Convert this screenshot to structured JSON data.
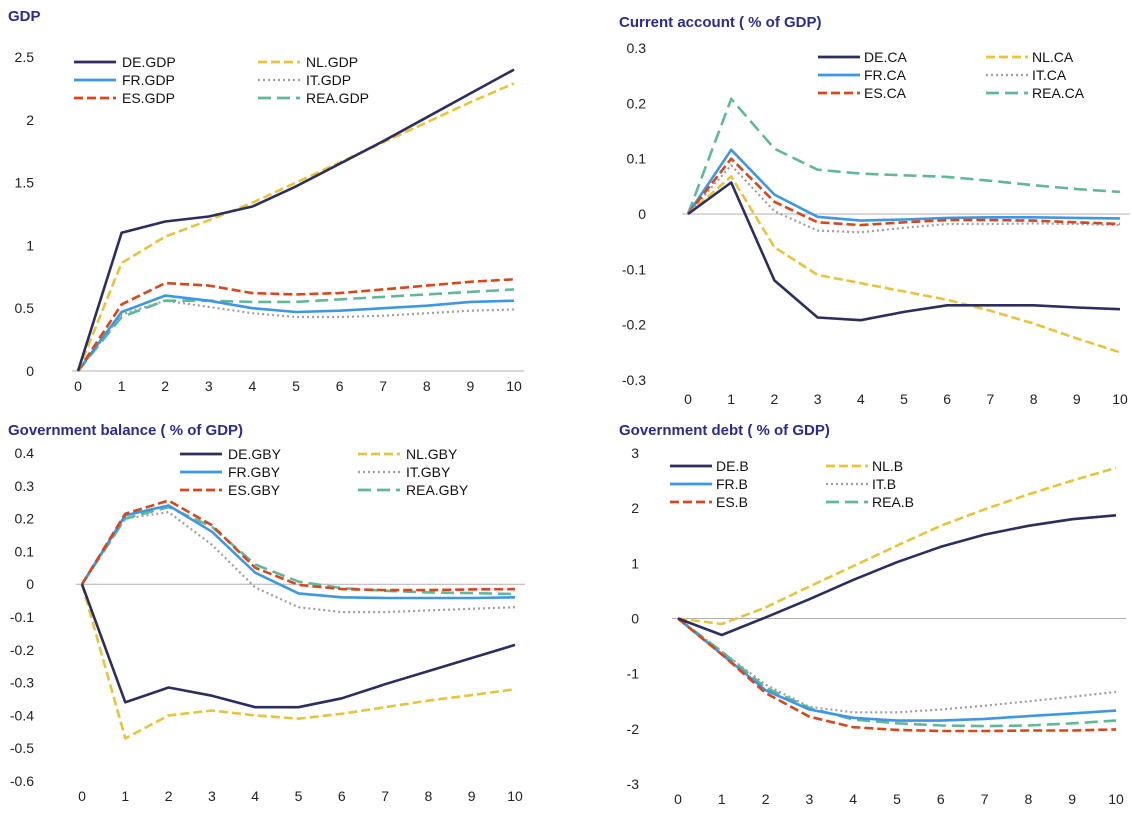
{
  "colors": {
    "DE": "#2b2e5e",
    "FR": "#3d97e6",
    "ES": "#d9461a",
    "NL": "#e8c43a",
    "IT": "#9e9e9e",
    "REA": "#5fb89a"
  },
  "chart_data": [
    {
      "type": "line",
      "title": "GDP",
      "x": [
        0,
        1,
        2,
        3,
        4,
        5,
        6,
        7,
        8,
        9,
        10
      ],
      "ylim": [
        0,
        2.5
      ],
      "yticks": [
        0,
        0.5,
        1,
        1.5,
        2,
        2.5
      ],
      "ytick_labels": [
        "0",
        "0.5",
        "1",
        "1.5",
        "2",
        "2.5"
      ],
      "legend_layout": "top-left",
      "series": [
        {
          "name": "DE.GDP",
          "key": "DE",
          "style": "solid",
          "values": [
            0,
            1.1,
            1.19,
            1.23,
            1.31,
            1.47,
            1.65,
            1.83,
            2.02,
            2.21,
            2.4
          ]
        },
        {
          "name": "NL.GDP",
          "key": "NL",
          "style": "dash",
          "values": [
            0,
            0.86,
            1.07,
            1.2,
            1.34,
            1.5,
            1.66,
            1.82,
            1.98,
            2.14,
            2.29
          ]
        },
        {
          "name": "FR.GDP",
          "key": "FR",
          "style": "solid",
          "values": [
            0,
            0.47,
            0.6,
            0.56,
            0.5,
            0.47,
            0.48,
            0.5,
            0.52,
            0.55,
            0.56
          ]
        },
        {
          "name": "IT.GDP",
          "key": "IT",
          "style": "dot",
          "values": [
            0,
            0.45,
            0.56,
            0.51,
            0.46,
            0.43,
            0.43,
            0.44,
            0.46,
            0.48,
            0.49
          ]
        },
        {
          "name": "ES.GDP",
          "key": "ES",
          "style": "dash",
          "values": [
            0,
            0.53,
            0.7,
            0.68,
            0.62,
            0.61,
            0.62,
            0.65,
            0.68,
            0.71,
            0.73
          ]
        },
        {
          "name": "REA.GDP",
          "key": "REA",
          "style": "longdash",
          "values": [
            0,
            0.43,
            0.56,
            0.56,
            0.55,
            0.55,
            0.57,
            0.59,
            0.61,
            0.63,
            0.65
          ]
        }
      ]
    },
    {
      "type": "line",
      "title": "Current account ( % of GDP)",
      "x": [
        0,
        1,
        2,
        3,
        4,
        5,
        6,
        7,
        8,
        9,
        10
      ],
      "ylim": [
        -0.3,
        0.3
      ],
      "yticks": [
        -0.3,
        -0.2,
        -0.1,
        0,
        0.1,
        0.2,
        0.3
      ],
      "ytick_labels": [
        "-0.3",
        "-0.2",
        "-0.1",
        "0",
        "0.1",
        "0.2",
        "0.3"
      ],
      "legend_layout": "top-right",
      "series": [
        {
          "name": "DE.CA",
          "key": "DE",
          "style": "solid",
          "values": [
            0,
            0.057,
            -0.12,
            -0.187,
            -0.192,
            -0.177,
            -0.165,
            -0.165,
            -0.165,
            -0.169,
            -0.172
          ]
        },
        {
          "name": "NL.CA",
          "key": "NL",
          "style": "dash",
          "values": [
            0,
            0.068,
            -0.06,
            -0.11,
            -0.125,
            -0.14,
            -0.155,
            -0.175,
            -0.198,
            -0.225,
            -0.25
          ]
        },
        {
          "name": "FR.CA",
          "key": "FR",
          "style": "solid",
          "values": [
            0,
            0.116,
            0.035,
            -0.005,
            -0.012,
            -0.01,
            -0.007,
            -0.006,
            -0.006,
            -0.007,
            -0.008
          ]
        },
        {
          "name": "IT.CA",
          "key": "IT",
          "style": "dot",
          "values": [
            0,
            0.088,
            0.005,
            -0.03,
            -0.033,
            -0.025,
            -0.018,
            -0.018,
            -0.017,
            -0.018,
            -0.02
          ]
        },
        {
          "name": "ES.CA",
          "key": "ES",
          "style": "dash",
          "values": [
            0,
            0.1,
            0.022,
            -0.015,
            -0.02,
            -0.015,
            -0.011,
            -0.011,
            -0.012,
            -0.015,
            -0.018
          ]
        },
        {
          "name": "REA.CA",
          "key": "REA",
          "style": "longdash",
          "values": [
            0,
            0.208,
            0.118,
            0.08,
            0.073,
            0.07,
            0.067,
            0.06,
            0.052,
            0.045,
            0.04
          ]
        }
      ]
    },
    {
      "type": "line",
      "title": "Government balance ( % of GDP)",
      "x": [
        0,
        1,
        2,
        3,
        4,
        5,
        6,
        7,
        8,
        9,
        10
      ],
      "ylim": [
        -0.6,
        0.4
      ],
      "yticks": [
        -0.6,
        -0.5,
        -0.4,
        -0.3,
        -0.2,
        -0.1,
        0,
        0.1,
        0.2,
        0.3,
        0.4
      ],
      "ytick_labels": [
        "-0.6",
        "-0.5",
        "-0.4",
        "-0.3",
        "-0.2",
        "-0.1",
        "0",
        "0.1",
        "0.2",
        "0.3",
        "0.4"
      ],
      "legend_layout": "top-right",
      "series": [
        {
          "name": "DE.GBY",
          "key": "DE",
          "style": "solid",
          "values": [
            0,
            -0.36,
            -0.315,
            -0.34,
            -0.375,
            -0.375,
            -0.348,
            -0.305,
            -0.265,
            -0.225,
            -0.185
          ]
        },
        {
          "name": "NL.GBY",
          "key": "NL",
          "style": "dash",
          "values": [
            0,
            -0.47,
            -0.4,
            -0.385,
            -0.4,
            -0.41,
            -0.395,
            -0.375,
            -0.355,
            -0.338,
            -0.32
          ]
        },
        {
          "name": "FR.GBY",
          "key": "FR",
          "style": "solid",
          "values": [
            0,
            0.21,
            0.24,
            0.16,
            0.035,
            -0.028,
            -0.04,
            -0.042,
            -0.042,
            -0.042,
            -0.04
          ]
        },
        {
          "name": "IT.GBY",
          "key": "IT",
          "style": "dot",
          "values": [
            0,
            0.2,
            0.22,
            0.12,
            -0.01,
            -0.07,
            -0.085,
            -0.085,
            -0.08,
            -0.075,
            -0.07
          ]
        },
        {
          "name": "ES.GBY",
          "key": "ES",
          "style": "dash",
          "values": [
            0,
            0.215,
            0.255,
            0.18,
            0.05,
            -0.002,
            -0.015,
            -0.018,
            -0.018,
            -0.016,
            -0.015
          ]
        },
        {
          "name": "REA.GBY",
          "key": "REA",
          "style": "longdash",
          "values": [
            0,
            0.2,
            0.235,
            0.175,
            0.06,
            0.008,
            -0.012,
            -0.02,
            -0.025,
            -0.027,
            -0.03
          ]
        }
      ]
    },
    {
      "type": "line",
      "title": "Government debt ( % of GDP)",
      "x": [
        0,
        1,
        2,
        3,
        4,
        5,
        6,
        7,
        8,
        9,
        10
      ],
      "ylim": [
        -3,
        3
      ],
      "yticks": [
        -3,
        -2,
        -1,
        0,
        1,
        2,
        3
      ],
      "ytick_labels": [
        "-3",
        "-2",
        "-1",
        "0",
        "1",
        "2",
        "3"
      ],
      "legend_layout": "top-left",
      "series": [
        {
          "name": "DE.B",
          "key": "DE",
          "style": "solid",
          "values": [
            0,
            -0.3,
            0.02,
            0.35,
            0.7,
            1.02,
            1.3,
            1.52,
            1.68,
            1.8,
            1.87
          ]
        },
        {
          "name": "NL.B",
          "key": "NL",
          "style": "dash",
          "values": [
            0,
            -0.1,
            0.2,
            0.58,
            0.95,
            1.32,
            1.68,
            1.98,
            2.25,
            2.5,
            2.73
          ]
        },
        {
          "name": "FR.B",
          "key": "FR",
          "style": "solid",
          "values": [
            0,
            -0.65,
            -1.3,
            -1.65,
            -1.8,
            -1.85,
            -1.85,
            -1.82,
            -1.77,
            -1.72,
            -1.67
          ]
        },
        {
          "name": "IT.B",
          "key": "IT",
          "style": "dot",
          "values": [
            0,
            -0.6,
            -1.2,
            -1.6,
            -1.7,
            -1.7,
            -1.65,
            -1.58,
            -1.5,
            -1.42,
            -1.33
          ]
        },
        {
          "name": "ES.B",
          "key": "ES",
          "style": "dash",
          "values": [
            0,
            -0.65,
            -1.35,
            -1.78,
            -1.97,
            -2.02,
            -2.04,
            -2.04,
            -2.03,
            -2.03,
            -2.01
          ]
        },
        {
          "name": "REA.B",
          "key": "REA",
          "style": "longdash",
          "values": [
            0,
            -0.6,
            -1.25,
            -1.62,
            -1.83,
            -1.9,
            -1.94,
            -1.95,
            -1.94,
            -1.9,
            -1.85
          ]
        }
      ]
    }
  ]
}
